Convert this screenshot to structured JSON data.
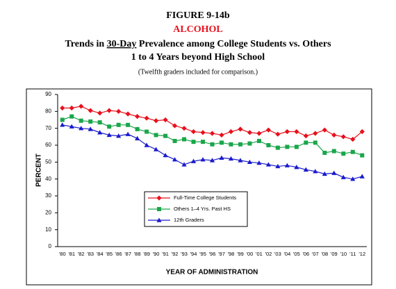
{
  "chart_data": {
    "type": "line",
    "figure": "FIGURE 9-14b",
    "topic": "ALCOHOL",
    "title_before": "Trends in",
    "title_underlined": "30-Day",
    "title_after": "Prevalence among College Students vs. Others",
    "title_line2": "1 to 4 Years beyond High School",
    "note": "(Twelfth graders included for comparison.)",
    "ylabel": "PERCENT",
    "xlabel": "YEAR OF ADMINISTRATION",
    "categories": [
      "'80",
      "'81",
      "'82",
      "'83",
      "'84",
      "'85",
      "'86",
      "'87",
      "'88",
      "'89",
      "'90",
      "'91",
      "'92",
      "'93",
      "'94",
      "'95",
      "'96",
      "'97",
      "'98",
      "'99",
      "'00",
      "'01",
      "'02",
      "'03",
      "'04",
      "'05",
      "'06",
      "'07",
      "'08",
      "'09",
      "'10",
      "'11",
      "'12"
    ],
    "ylim": [
      0,
      90
    ],
    "yticks": [
      0,
      10,
      20,
      30,
      40,
      50,
      60,
      70,
      80,
      90
    ],
    "grid": false,
    "series": [
      {
        "name": "Full-Time College Students",
        "color": "#e8101c",
        "marker": "diamond",
        "values": [
          82,
          82,
          83,
          80.5,
          79,
          80.5,
          80,
          78.5,
          77,
          76,
          74.5,
          75,
          71.5,
          70,
          68,
          67.5,
          67,
          66,
          68,
          69.5,
          67.5,
          67,
          69,
          66.5,
          68,
          68,
          65.5,
          67,
          69,
          66,
          65,
          63.5,
          68
        ]
      },
      {
        "name": "Others 1–4 Yrs. Past HS",
        "color": "#1aa64a",
        "marker": "square",
        "values": [
          75,
          77,
          74.5,
          74,
          73.5,
          71,
          72,
          72,
          69.5,
          68,
          66,
          65.5,
          62.5,
          63.5,
          62,
          62,
          60.5,
          61.5,
          60.5,
          60.5,
          61,
          62.5,
          60,
          58.5,
          59,
          59,
          61.5,
          61.5,
          55.5,
          56.5,
          55,
          56,
          54
        ]
      },
      {
        "name": "12th Graders",
        "color": "#1a1acc",
        "marker": "triangle",
        "values": [
          72,
          71,
          70,
          69.5,
          67.5,
          66,
          65.5,
          66.5,
          64,
          60,
          57.5,
          54,
          51.5,
          48.5,
          50.5,
          51.5,
          51,
          52.5,
          52,
          51,
          50,
          49.5,
          48.5,
          47.5,
          48,
          47,
          45.5,
          44.5,
          43,
          43.5,
          41,
          40,
          41.5
        ]
      }
    ]
  }
}
